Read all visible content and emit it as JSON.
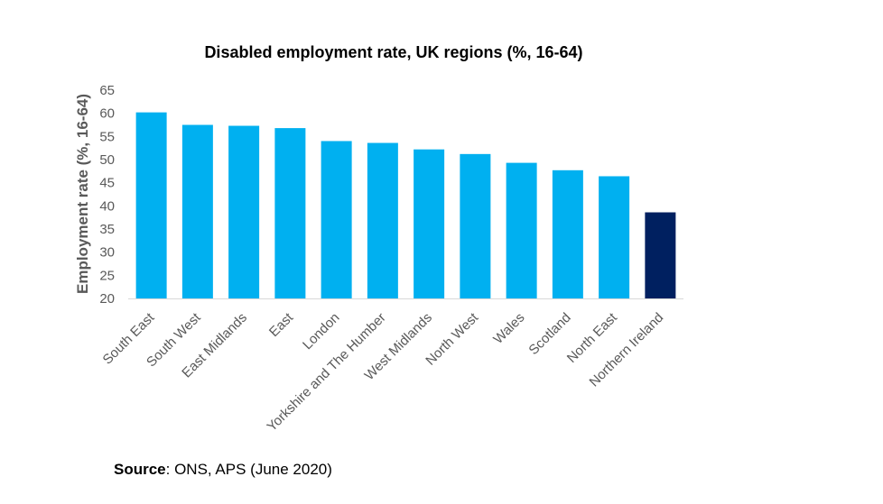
{
  "chart_data": {
    "type": "bar",
    "title": "Disabled employment rate, UK regions (%, 16-64)",
    "ylabel": "Employment rate (%, 16-64)",
    "xlabel": "",
    "ylim": [
      20,
      65
    ],
    "yticks": [
      20,
      25,
      30,
      35,
      40,
      45,
      50,
      55,
      60,
      65
    ],
    "categories": [
      "South East",
      "South West",
      "East Midlands",
      "East",
      "London",
      "Yorkshire and The Humber",
      "West Midlands",
      "North West",
      "Wales",
      "Scotland",
      "North East",
      "Northern Ireland"
    ],
    "values": [
      60.2,
      57.5,
      57.3,
      56.8,
      54.0,
      53.6,
      52.2,
      51.2,
      49.3,
      47.7,
      46.4,
      38.6
    ],
    "colors": {
      "default": "#00b0f0",
      "highlight": "#002060",
      "highlight_category": "Northern Ireland"
    },
    "grid": false,
    "legend": "none"
  },
  "footer": {
    "source_label": "Source",
    "source_text": ": ONS, APS (June 2020)"
  }
}
